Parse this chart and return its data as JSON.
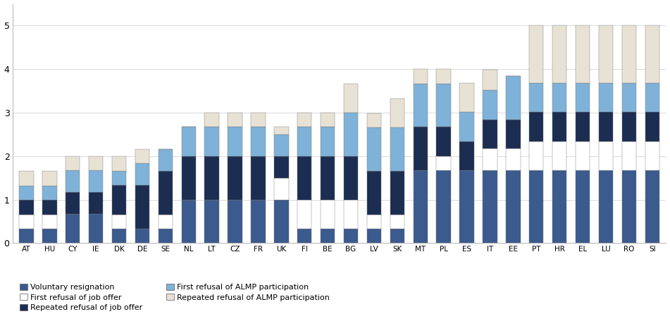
{
  "categories": [
    "AT",
    "HU",
    "CY",
    "IE",
    "DK",
    "DE",
    "SE",
    "NL",
    "LT",
    "CZ",
    "FR",
    "UK",
    "FI",
    "BE",
    "BG",
    "LV",
    "SK",
    "MT",
    "PL",
    "ES",
    "IT",
    "EE",
    "PT",
    "HR",
    "EL",
    "LU",
    "RO",
    "SI"
  ],
  "seg_voluntary": [
    0.33,
    0.33,
    0.67,
    0.67,
    0.33,
    0.33,
    0.33,
    1.0,
    1.0,
    1.0,
    1.0,
    1.0,
    0.33,
    0.33,
    0.33,
    0.33,
    0.33,
    1.67,
    1.67,
    1.67,
    1.67,
    1.67,
    1.67,
    1.67,
    1.67,
    1.67,
    1.67,
    1.67
  ],
  "seg_first_job": [
    0.33,
    0.33,
    0.0,
    0.0,
    0.33,
    0.0,
    0.33,
    0.0,
    0.0,
    0.0,
    0.0,
    0.5,
    0.67,
    0.67,
    0.67,
    0.33,
    0.33,
    0.0,
    0.33,
    0.0,
    0.5,
    0.5,
    0.67,
    0.67,
    0.67,
    0.67,
    0.67,
    0.67
  ],
  "seg_repeated_job": [
    0.33,
    0.33,
    0.5,
    0.5,
    0.67,
    1.0,
    1.0,
    1.0,
    1.0,
    1.0,
    1.0,
    0.5,
    1.0,
    1.0,
    1.0,
    1.0,
    1.0,
    1.0,
    0.67,
    0.67,
    0.67,
    0.67,
    0.67,
    0.67,
    0.67,
    0.67,
    0.67,
    0.67
  ],
  "seg_first_almp": [
    0.33,
    0.33,
    0.5,
    0.5,
    0.33,
    0.5,
    0.5,
    0.67,
    0.67,
    0.67,
    0.67,
    0.5,
    0.67,
    0.67,
    1.0,
    1.0,
    1.0,
    1.0,
    1.0,
    0.67,
    0.67,
    1.0,
    0.67,
    0.67,
    0.67,
    0.67,
    0.67,
    0.67
  ],
  "seg_repeated_almp": [
    0.33,
    0.33,
    0.33,
    0.33,
    0.33,
    0.33,
    0.0,
    0.0,
    0.33,
    0.33,
    0.33,
    0.17,
    0.33,
    0.33,
    0.67,
    0.33,
    0.67,
    0.33,
    0.33,
    0.67,
    0.47,
    0.0,
    1.33,
    1.33,
    1.33,
    1.33,
    1.33,
    1.33
  ],
  "colors": {
    "voluntary": "#3B5A8E",
    "first_job": "#FFFFFF",
    "repeated_job": "#1C2D52",
    "first_almp": "#7FB2D8",
    "repeated_almp": "#E8E2D5"
  },
  "legend_labels": [
    "Voluntary resignation",
    "First refusal of job offer",
    "Repeated refusal of job offer",
    "First refusal of ALMP participation",
    "Repeated refusal of ALMP participation"
  ],
  "ylim": [
    0,
    5.5
  ],
  "yticks": [
    0,
    1,
    2,
    3,
    4,
    5
  ],
  "bar_edge_color": "#777777",
  "bar_edge_width": 0.3
}
